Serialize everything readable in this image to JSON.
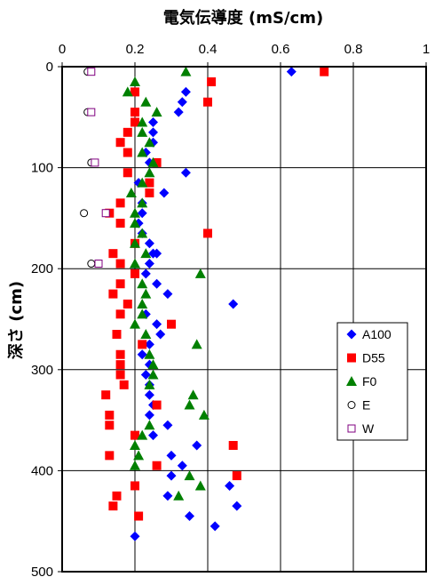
{
  "chart_data": {
    "type": "scatter",
    "xlabel": "電気伝導度 (mS/cm)",
    "ylabel": "深さ (cm)",
    "xlim": [
      0,
      1
    ],
    "ylim": [
      0,
      500
    ],
    "y_inverted": true,
    "x_axis_position": "top",
    "grid": true,
    "legend_position": "right",
    "x_ticks": [
      "0",
      "0.2",
      "0.4",
      "0.6",
      "0.8",
      "1"
    ],
    "y_ticks": [
      "0",
      "100",
      "200",
      "300",
      "400",
      "500"
    ],
    "series": [
      {
        "name": "A100",
        "marker": "diamond",
        "color": "#0000FF",
        "points": [
          [
            0.63,
            5
          ],
          [
            0.34,
            25
          ],
          [
            0.33,
            35
          ],
          [
            0.32,
            45
          ],
          [
            0.25,
            55
          ],
          [
            0.25,
            65
          ],
          [
            0.25,
            75
          ],
          [
            0.23,
            85
          ],
          [
            0.24,
            95
          ],
          [
            0.34,
            105
          ],
          [
            0.21,
            115
          ],
          [
            0.28,
            125
          ],
          [
            0.22,
            135
          ],
          [
            0.22,
            145
          ],
          [
            0.21,
            155
          ],
          [
            0.22,
            165
          ],
          [
            0.24,
            175
          ],
          [
            0.25,
            185
          ],
          [
            0.26,
            185
          ],
          [
            0.24,
            195
          ],
          [
            0.23,
            205
          ],
          [
            0.26,
            215
          ],
          [
            0.29,
            225
          ],
          [
            0.47,
            235
          ],
          [
            0.23,
            245
          ],
          [
            0.26,
            255
          ],
          [
            0.27,
            265
          ],
          [
            0.24,
            275
          ],
          [
            0.22,
            285
          ],
          [
            0.24,
            295
          ],
          [
            0.23,
            305
          ],
          [
            0.24,
            315
          ],
          [
            0.24,
            325
          ],
          [
            0.25,
            335
          ],
          [
            0.24,
            345
          ],
          [
            0.29,
            355
          ],
          [
            0.25,
            365
          ],
          [
            0.37,
            375
          ],
          [
            0.3,
            385
          ],
          [
            0.33,
            395
          ],
          [
            0.3,
            405
          ],
          [
            0.46,
            415
          ],
          [
            0.29,
            425
          ],
          [
            0.48,
            435
          ],
          [
            0.35,
            445
          ],
          [
            0.42,
            455
          ],
          [
            0.2,
            465
          ]
        ]
      },
      {
        "name": "D55",
        "marker": "square",
        "color": "#FF0000",
        "points": [
          [
            0.72,
            5
          ],
          [
            0.41,
            15
          ],
          [
            0.2,
            25
          ],
          [
            0.4,
            35
          ],
          [
            0.2,
            45
          ],
          [
            0.2,
            55
          ],
          [
            0.18,
            65
          ],
          [
            0.16,
            75
          ],
          [
            0.18,
            85
          ],
          [
            0.26,
            95
          ],
          [
            0.18,
            105
          ],
          [
            0.24,
            115
          ],
          [
            0.24,
            125
          ],
          [
            0.16,
            135
          ],
          [
            0.13,
            145
          ],
          [
            0.16,
            155
          ],
          [
            0.4,
            165
          ],
          [
            0.2,
            175
          ],
          [
            0.14,
            185
          ],
          [
            0.16,
            195
          ],
          [
            0.2,
            205
          ],
          [
            0.16,
            215
          ],
          [
            0.14,
            225
          ],
          [
            0.18,
            235
          ],
          [
            0.16,
            245
          ],
          [
            0.3,
            255
          ],
          [
            0.15,
            265
          ],
          [
            0.22,
            275
          ],
          [
            0.16,
            285
          ],
          [
            0.16,
            295
          ],
          [
            0.16,
            305
          ],
          [
            0.17,
            315
          ],
          [
            0.12,
            325
          ],
          [
            0.26,
            335
          ],
          [
            0.13,
            345
          ],
          [
            0.13,
            355
          ],
          [
            0.2,
            365
          ],
          [
            0.47,
            375
          ],
          [
            0.13,
            385
          ],
          [
            0.26,
            395
          ],
          [
            0.48,
            405
          ],
          [
            0.2,
            415
          ],
          [
            0.15,
            425
          ],
          [
            0.14,
            435
          ],
          [
            0.21,
            445
          ]
        ]
      },
      {
        "name": "F0",
        "marker": "triangle",
        "color": "#008000",
        "points": [
          [
            0.34,
            5
          ],
          [
            0.2,
            15
          ],
          [
            0.18,
            25
          ],
          [
            0.23,
            35
          ],
          [
            0.26,
            45
          ],
          [
            0.22,
            55
          ],
          [
            0.22,
            65
          ],
          [
            0.24,
            75
          ],
          [
            0.22,
            85
          ],
          [
            0.25,
            95
          ],
          [
            0.24,
            105
          ],
          [
            0.22,
            115
          ],
          [
            0.19,
            125
          ],
          [
            0.22,
            135
          ],
          [
            0.2,
            145
          ],
          [
            0.2,
            155
          ],
          [
            0.22,
            165
          ],
          [
            0.2,
            175
          ],
          [
            0.23,
            185
          ],
          [
            0.2,
            195
          ],
          [
            0.38,
            205
          ],
          [
            0.22,
            215
          ],
          [
            0.23,
            225
          ],
          [
            0.22,
            235
          ],
          [
            0.22,
            245
          ],
          [
            0.2,
            255
          ],
          [
            0.23,
            265
          ],
          [
            0.37,
            275
          ],
          [
            0.24,
            285
          ],
          [
            0.25,
            295
          ],
          [
            0.25,
            305
          ],
          [
            0.24,
            315
          ],
          [
            0.36,
            325
          ],
          [
            0.35,
            335
          ],
          [
            0.39,
            345
          ],
          [
            0.24,
            355
          ],
          [
            0.22,
            365
          ],
          [
            0.2,
            375
          ],
          [
            0.21,
            385
          ],
          [
            0.2,
            395
          ],
          [
            0.35,
            405
          ],
          [
            0.38,
            415
          ],
          [
            0.32,
            425
          ]
        ]
      },
      {
        "name": "E",
        "marker": "circle",
        "color": "#000000",
        "points": [
          [
            0.07,
            5
          ],
          [
            0.07,
            45
          ],
          [
            0.08,
            95
          ],
          [
            0.06,
            145
          ],
          [
            0.08,
            195
          ]
        ]
      },
      {
        "name": "W",
        "marker": "square-open",
        "color": "#800080",
        "points": [
          [
            0.08,
            5
          ],
          [
            0.08,
            45
          ],
          [
            0.09,
            95
          ],
          [
            0.12,
            145
          ],
          [
            0.1,
            195
          ]
        ]
      }
    ]
  }
}
